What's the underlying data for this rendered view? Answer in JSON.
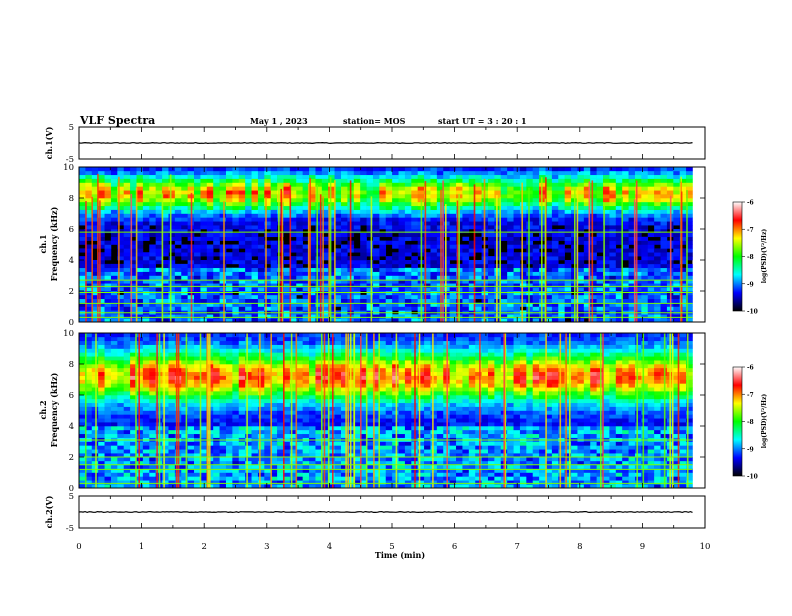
{
  "header": {
    "title": "VLF Spectra",
    "date": "May 1 , 2023",
    "station": "station= MOS",
    "start": "start UT = 3 : 20 : 1"
  },
  "colors": {
    "colormap": [
      "#000000",
      "#0000ff",
      "#00ffff",
      "#00ff00",
      "#ffff00",
      "#ff0000",
      "#ffffff"
    ],
    "background": "#ffffff",
    "axes": "#000000"
  },
  "chart_data": [
    {
      "type": "line",
      "id": "ch1-waveform",
      "ylabel": "ch.1(V)",
      "ylim": [
        -5,
        5
      ],
      "yticks": [
        5,
        -5
      ],
      "xlim": [
        0,
        10
      ],
      "series": [
        {
          "values_note": "flat trace",
          "y": [
            0,
            0
          ]
        }
      ]
    },
    {
      "type": "heatmap",
      "id": "ch1-spectrogram",
      "ylabel_top": "ch.1",
      "ylabel": "Frequency (kHz)",
      "xlim": [
        0,
        10
      ],
      "ylim": [
        0,
        10
      ],
      "yticks": [
        "0",
        "2",
        "4",
        "6",
        "8",
        "10"
      ],
      "colorbar": {
        "label": "log(PSD)(V²/Hz)",
        "range": [
          -10,
          -6
        ],
        "ticks": [
          "-6",
          "-7",
          "-8",
          "-9",
          "-10"
        ]
      },
      "line_frequencies_khz": [
        0.3,
        0.6,
        1.2,
        1.9,
        2.3,
        2.7,
        5.8
      ],
      "data_end_min": 9.8
    },
    {
      "type": "heatmap",
      "id": "ch2-spectrogram",
      "ylabel_top": "ch.2",
      "ylabel": "Frequency (kHz)",
      "xlim": [
        0,
        10
      ],
      "ylim": [
        0,
        10
      ],
      "yticks": [
        "0",
        "2",
        "4",
        "6",
        "8",
        "10"
      ],
      "colorbar": {
        "label": "log(PSD)(V²/Hz)",
        "range": [
          -10,
          -6
        ],
        "ticks": [
          "-6",
          "-7",
          "-8",
          "-9",
          "-10"
        ]
      },
      "line_frequencies_khz": [
        0.3,
        1.2,
        1.5,
        2.0,
        3.1
      ],
      "data_end_min": 9.8
    },
    {
      "type": "line",
      "id": "ch2-waveform",
      "ylabel": "ch.2(V)",
      "ylim": [
        -5,
        5
      ],
      "yticks": [
        5,
        -5
      ],
      "xlim": [
        0,
        10
      ],
      "xlabel": "Time (min)",
      "xticks": [
        "0",
        "1",
        "2",
        "3",
        "4",
        "5",
        "6",
        "7",
        "8",
        "9",
        "10"
      ],
      "series": [
        {
          "values_note": "flat trace",
          "y": [
            0,
            0
          ]
        }
      ]
    }
  ]
}
